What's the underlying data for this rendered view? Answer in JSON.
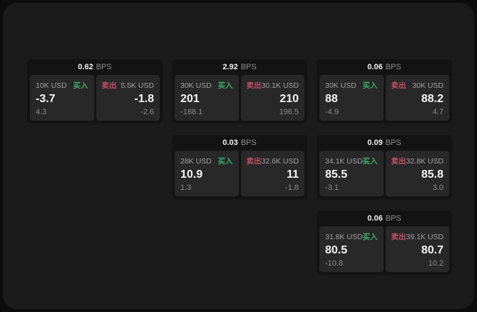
{
  "colors": {
    "buy": "#3fa86a",
    "sell": "#c05066",
    "card_bg": "#131313",
    "panel_bg": "#282828",
    "container_bg": "#1b1b1b",
    "page_bg": "#0d0d0d"
  },
  "labels": {
    "bps": "BPS",
    "buy": "买入",
    "sell": "卖出"
  },
  "cards": [
    {
      "bps": "0.62",
      "buy": {
        "amount": "10K USD",
        "value": "-3.7",
        "delta": "4.3"
      },
      "sell": {
        "amount": "5.5K USD",
        "value": "-1.8",
        "delta": "-2.6"
      }
    },
    {
      "bps": "2.92",
      "buy": {
        "amount": "30K USD",
        "value": "201",
        "delta": "-188.1"
      },
      "sell": {
        "amount": "30.1K USD",
        "value": "210",
        "delta": "196.5"
      }
    },
    {
      "bps": "0.06",
      "buy": {
        "amount": "30K USD",
        "value": "88",
        "delta": "-4.9"
      },
      "sell": {
        "amount": "30K USD",
        "value": "88.2",
        "delta": "4.7"
      }
    },
    {
      "bps": "0.03",
      "buy": {
        "amount": "28K USD",
        "value": "10.9",
        "delta": "1.3"
      },
      "sell": {
        "amount": "32.6K USD",
        "value": "11",
        "delta": "-1.8"
      }
    },
    {
      "bps": "0.09",
      "buy": {
        "amount": "34.1K USD",
        "value": "85.5",
        "delta": "-3.1"
      },
      "sell": {
        "amount": "32.8K USD",
        "value": "85.8",
        "delta": "3.0"
      }
    },
    {
      "bps": "0.06",
      "buy": {
        "amount": "31.8K USD",
        "value": "80.5",
        "delta": "-10.8"
      },
      "sell": {
        "amount": "39.1K USD",
        "value": "80.7",
        "delta": "10.2"
      }
    }
  ]
}
